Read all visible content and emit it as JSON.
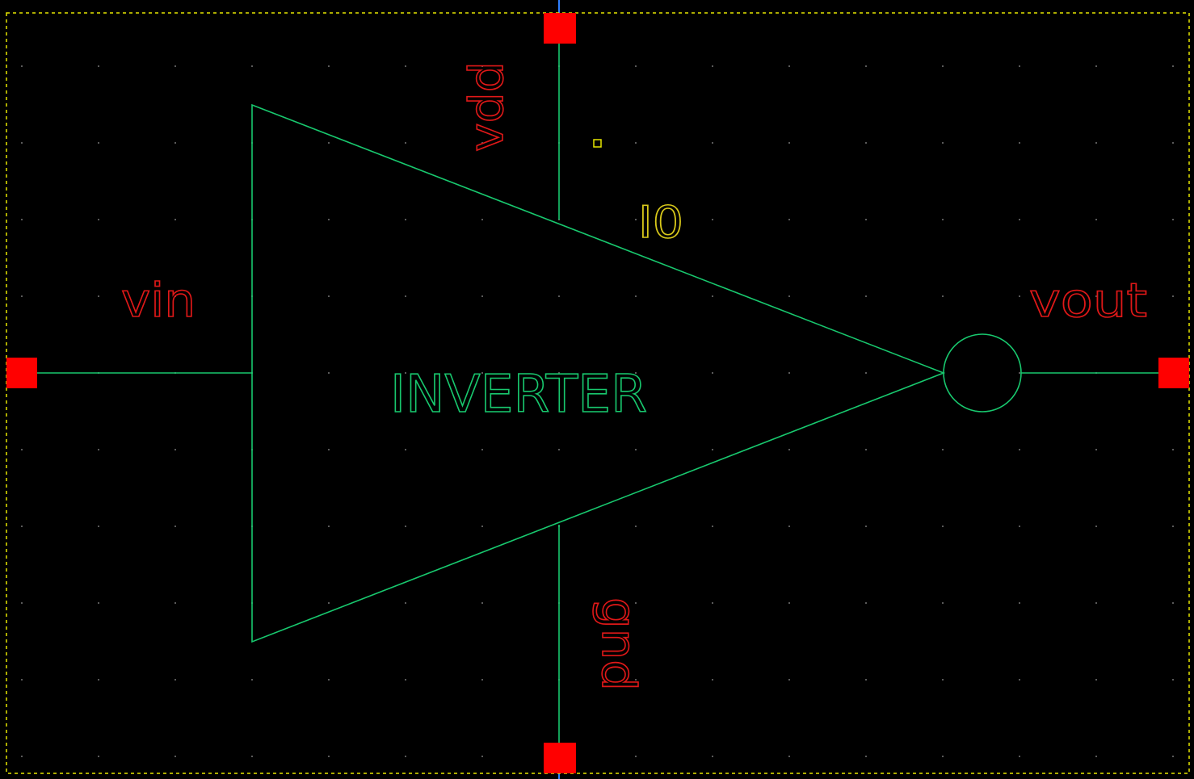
{
  "symbol": {
    "cell_name": "INVERTER",
    "instance_name": "I0"
  },
  "pins": {
    "input": "vin",
    "output": "vout",
    "power": "vdd",
    "ground": "gnd"
  },
  "colors": {
    "background": "#000000",
    "grid_dot": "#5a5a5a",
    "selection_box": "#e6e600",
    "symbol_line": "#18c86e",
    "pin_square": "#ff0000",
    "pin_label": "#e01818",
    "instance_label": "#d8c81a",
    "axis_line": "#2f7fff"
  }
}
